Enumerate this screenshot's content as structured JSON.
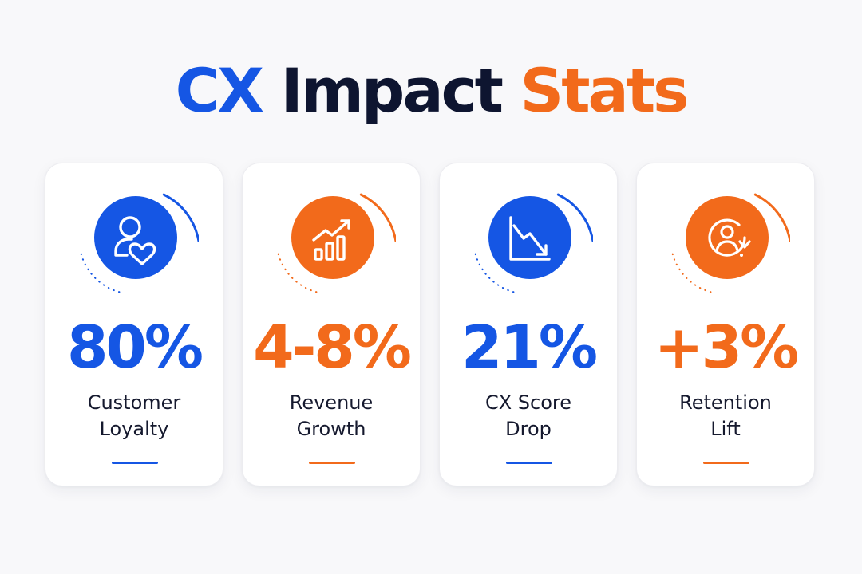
{
  "title": {
    "word1": "CX",
    "word2": "Impact",
    "word3": "Stats"
  },
  "colors": {
    "blue": "#1556e4",
    "navy": "#0e1530",
    "orange": "#f26a1b"
  },
  "cards": [
    {
      "icon": "user-heart-icon",
      "accent": "#1556e4",
      "value": "80%",
      "label_line1": "Customer",
      "label_line2": "Loyalty"
    },
    {
      "icon": "growth-chart-icon",
      "accent": "#f26a1b",
      "value": "4-8%",
      "label_line1": "Revenue",
      "label_line2": "Growth"
    },
    {
      "icon": "decline-chart-icon",
      "accent": "#1556e4",
      "value": "21%",
      "label_line1": "CX Score",
      "label_line2": "Drop"
    },
    {
      "icon": "user-retention-icon",
      "accent": "#f26a1b",
      "value": "+3%",
      "label_line1": "Retention",
      "label_line2": "Lift"
    }
  ]
}
